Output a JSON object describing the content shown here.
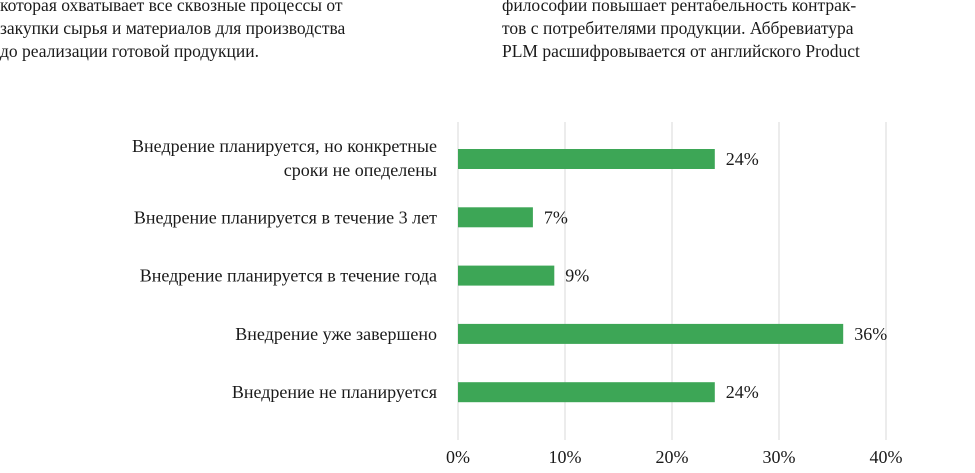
{
  "text": {
    "left_lines": [
      "которая охватывает все сквозные процессы от",
      "закупки сырья и материалов для производства",
      "до реализации готовой продукции."
    ],
    "right_lines": [
      "философии повышает рентабельность контрак-",
      "тов с потребителями продукции. Аббревиатура",
      "PLM расшифровывается от английского Product"
    ]
  },
  "colors": {
    "bar": "#3da656",
    "grid": "#d9d9d9",
    "text": "#1a1a1a"
  },
  "chart_data": {
    "type": "bar",
    "orientation": "horizontal",
    "categories": [
      [
        "Внедрение планируется, но конкретные",
        "сроки не опеделены"
      ],
      [
        "Внедрение планируется в течение 3 лет"
      ],
      [
        "Внедрение планируется в течение года"
      ],
      [
        "Внедрение уже завершено"
      ],
      [
        "Внедрение не планируется"
      ]
    ],
    "values": [
      24,
      7,
      9,
      36,
      24
    ],
    "value_labels": [
      "24%",
      "7%",
      "9%",
      "36%",
      "24%"
    ],
    "xlim": [
      0,
      40
    ],
    "xticks": [
      0,
      10,
      20,
      30,
      40
    ],
    "xtick_labels": [
      "0%",
      "10%",
      "20%",
      "30%",
      "40%"
    ],
    "grid": true
  }
}
